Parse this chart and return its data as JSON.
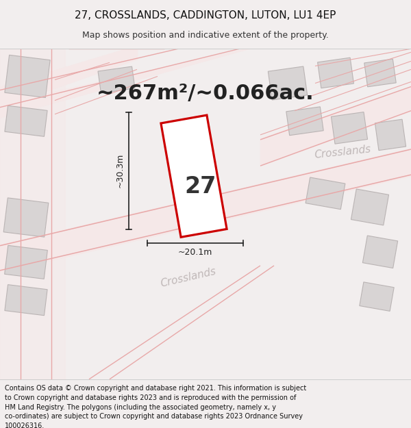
{
  "title_line1": "27, CROSSLANDS, CADDINGTON, LUTON, LU1 4EP",
  "title_line2": "Map shows position and indicative extent of the property.",
  "area_text": "~267m²/~0.066ac.",
  "label_27": "27",
  "dim_height": "~30.3m",
  "dim_width": "~20.1m",
  "road_label_bottom": "Crosslands",
  "road_label_right": "Crosslands",
  "footer": "Contains OS data © Crown copyright and database right 2021. This information is subject to Crown copyright and database rights 2023 and is reproduced with the permission of\nHM Land Registry. The polygons (including the associated geometry, namely x, y\nco-ordinates) are subject to Crown copyright and database rights 2023 Ordnance Survey\n100026316.",
  "bg_color": "#f2eeee",
  "map_bg": "#f2eeee",
  "title_bg": "#ffffff",
  "footer_bg": "#ffffff",
  "plot_color": "#cc0000",
  "road_fill_color": "#f5e8e8",
  "road_line_color": "#e8a8a8",
  "building_face": "#d8d4d4",
  "building_edge": "#bab4b4",
  "dim_color": "#222222",
  "road_text_color": "#c0b8b8",
  "title_fontsize": 11,
  "subtitle_fontsize": 9,
  "area_fontsize": 22,
  "label_fontsize": 24,
  "dim_fontsize": 9,
  "road_fontsize": 11,
  "footer_fontsize": 7
}
